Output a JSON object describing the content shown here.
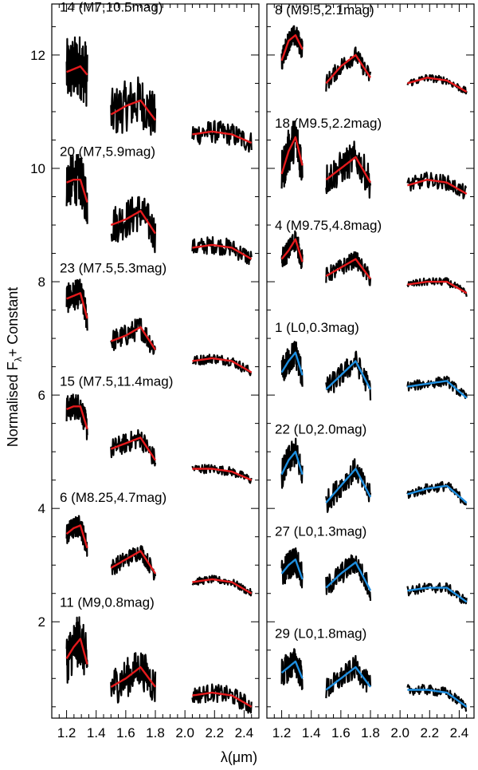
{
  "chart_data": {
    "type": "line",
    "ylabel_main": "Normalised F",
    "ylabel_sub": "λ",
    "ylabel_tail": "+ Constant",
    "xlabel": "λ(μm)",
    "xlim": [
      1.1,
      2.5
    ],
    "ylim": [
      0.3,
      12.9
    ],
    "xticks": [
      "1.2",
      "1.4",
      "1.6",
      "1.8",
      "2.0",
      "2.2",
      "2.4"
    ],
    "xtick_values": [
      1.2,
      1.4,
      1.6,
      1.8,
      2.0,
      2.2,
      2.4
    ],
    "yticks": [
      "2",
      "4",
      "6",
      "8",
      "10",
      "12"
    ],
    "ytick_values": [
      2,
      4,
      6,
      8,
      10,
      12
    ],
    "band_ranges": [
      [
        1.2,
        1.34
      ],
      [
        1.5,
        1.8
      ],
      [
        2.05,
        2.45
      ]
    ],
    "colors": {
      "observed": "#000000",
      "template_red": "#e41a1c",
      "template_blue": "#1f8fe0"
    },
    "panels": [
      {
        "name": "left",
        "spectra": [
          {
            "label": "14 (M7,10.5mag)",
            "label_y": 12.85,
            "model": "red",
            "noise": 0.45,
            "j": [
              11.7,
              11.75,
              11.8,
              11.65
            ],
            "h": [
              10.95,
              11.1,
              11.2,
              10.85
            ],
            "k": [
              10.6,
              10.65,
              10.6,
              10.45
            ]
          },
          {
            "label": "20 (M7,5.9mag)",
            "label_y": 10.3,
            "model": "red",
            "noise": 0.35,
            "j": [
              9.75,
              9.8,
              9.8,
              9.4
            ],
            "h": [
              9.0,
              9.1,
              9.25,
              8.85
            ],
            "k": [
              8.6,
              8.65,
              8.6,
              8.4
            ]
          },
          {
            "label": "23 (M7.5,5.3mag)",
            "label_y": 8.25,
            "model": "red",
            "noise": 0.2,
            "j": [
              7.7,
              7.75,
              7.8,
              7.35
            ],
            "h": [
              6.95,
              7.05,
              7.2,
              6.8
            ],
            "k": [
              6.6,
              6.65,
              6.6,
              6.4
            ]
          },
          {
            "label": "15 (M7.5,11.4mag)",
            "label_y": 6.25,
            "model": "red",
            "noise": 0.18,
            "j": [
              5.75,
              5.8,
              5.8,
              5.4
            ],
            "h": [
              5.05,
              5.15,
              5.25,
              4.85
            ],
            "k": [
              4.7,
              4.7,
              4.65,
              4.5
            ]
          },
          {
            "label": "6 (M8.25,4.7mag)",
            "label_y": 4.2,
            "model": "red",
            "noise": 0.15,
            "j": [
              3.55,
              3.65,
              3.7,
              3.3
            ],
            "h": [
              2.95,
              3.1,
              3.25,
              2.85
            ],
            "k": [
              2.7,
              2.75,
              2.7,
              2.5
            ]
          },
          {
            "label": "11 (M9,0.8mag)",
            "label_y": 2.35,
            "model": "red",
            "noise": 0.35,
            "j": [
              1.35,
              1.55,
              1.7,
              1.25
            ],
            "h": [
              0.85,
              1.0,
              1.2,
              0.85
            ],
            "k": [
              0.7,
              0.75,
              0.7,
              0.5
            ]
          }
        ]
      },
      {
        "name": "right",
        "spectra": [
          {
            "label": "8 (M9.5,2.1mag)",
            "label_y": 12.8,
            "model": "red",
            "noise": 0.15,
            "j": [
              11.9,
              12.25,
              12.35,
              12.1
            ],
            "h": [
              11.5,
              11.8,
              12.0,
              11.6
            ],
            "k": [
              11.5,
              11.6,
              11.55,
              11.35
            ]
          },
          {
            "label": "18 (M9.5,2.2mag)",
            "label_y": 10.8,
            "model": "red",
            "noise": 0.3,
            "j": [
              9.9,
              10.3,
              10.55,
              10.05
            ],
            "h": [
              9.8,
              10.0,
              10.2,
              9.75
            ],
            "k": [
              9.7,
              9.8,
              9.75,
              9.55
            ]
          },
          {
            "label": "4 (M9.75,4.8mag)",
            "label_y": 9.0,
            "model": "red",
            "noise": 0.15,
            "j": [
              8.4,
              8.55,
              8.75,
              8.35
            ],
            "h": [
              8.1,
              8.25,
              8.4,
              8.05
            ],
            "k": [
              7.95,
              8.0,
              8.0,
              7.8
            ]
          },
          {
            "label": "1 (L0,0.3mag)",
            "label_y": 7.2,
            "model": "blue",
            "noise": 0.2,
            "j": [
              6.4,
              6.6,
              6.75,
              6.35
            ],
            "h": [
              6.1,
              6.35,
              6.6,
              6.1
            ],
            "k": [
              6.15,
              6.2,
              6.25,
              5.95
            ]
          },
          {
            "label": "22 (L0,2.0mag)",
            "label_y": 5.4,
            "model": "blue",
            "noise": 0.2,
            "j": [
              4.6,
              4.85,
              5.0,
              4.6
            ],
            "h": [
              4.1,
              4.4,
              4.7,
              4.2
            ],
            "k": [
              4.25,
              4.35,
              4.4,
              4.1
            ]
          },
          {
            "label": "27 (L0,1.3mag)",
            "label_y": 3.6,
            "model": "blue",
            "noise": 0.2,
            "j": [
              2.85,
              3.0,
              3.1,
              2.75
            ],
            "h": [
              2.6,
              2.85,
              3.05,
              2.55
            ],
            "k": [
              2.55,
              2.6,
              2.6,
              2.35
            ]
          },
          {
            "label": "29 (L0,1.8mag)",
            "label_y": 1.8,
            "model": "blue",
            "noise": 0.2,
            "j": [
              1.1,
              1.2,
              1.3,
              1.0
            ],
            "h": [
              0.8,
              1.0,
              1.2,
              0.85
            ],
            "k": [
              0.8,
              0.8,
              0.75,
              0.5
            ]
          }
        ]
      }
    ]
  }
}
